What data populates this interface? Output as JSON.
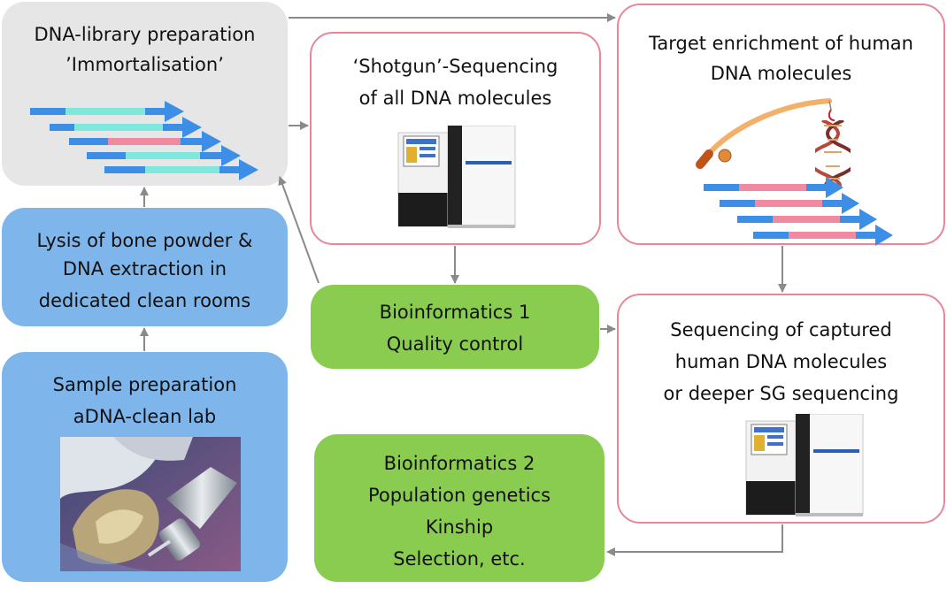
{
  "boxes": {
    "library": {
      "line1": "DNA-library preparation",
      "line2": "’Immortalisation’"
    },
    "lysis": {
      "line1": "Lysis of bone powder &",
      "line2": "DNA extraction in",
      "line3": "dedicated clean rooms"
    },
    "sample": {
      "line1": "Sample preparation",
      "line2": "aDNA-clean lab"
    },
    "shotgun": {
      "line1": "‘Shotgun’-Sequencing",
      "line2": "of all DNA molecules"
    },
    "enrichment": {
      "line1": "Target enrichment of human",
      "line2": "DNA molecules"
    },
    "bioinfo1": {
      "line1": "Bioinformatics 1",
      "line2": "Quality control"
    },
    "capture_seq": {
      "line1": "Sequencing of captured",
      "line2": "human DNA molecules",
      "line3": "or deeper SG sequencing"
    },
    "bioinfo2": {
      "line1": "Bioinformatics 2",
      "line2": "Population genetics",
      "line3": "Kinship",
      "line4": "Selection, etc."
    }
  },
  "colors": {
    "grey_box": "#e6e6e6",
    "blue_box": "#7eb6ec",
    "green_box": "#8acc4f",
    "pink_border": "#e6879a",
    "adapter_blue": "#3d8ee6",
    "insert_cyan": "#7ee8dc",
    "insert_pink": "#f08aa0",
    "arrow_grey": "#8a8a8a"
  },
  "icons": {
    "sequencer": "sequencer-machine-icon",
    "fishing_rod": "fishing-rod-icon",
    "dna_helix": "dna-helix-icon",
    "sample_photo": "bone-drilling-photo"
  }
}
